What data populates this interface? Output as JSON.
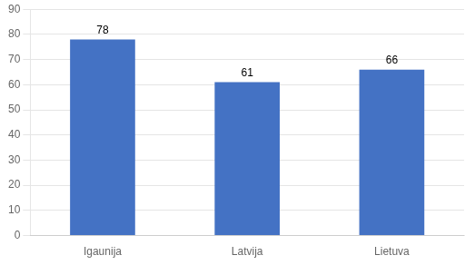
{
  "chart_data": {
    "type": "bar",
    "categories": [
      "Igaunija",
      "Latvija",
      "Lietuva"
    ],
    "values": [
      78,
      61,
      66
    ],
    "color": "#4472C4",
    "ylim": [
      0,
      90
    ],
    "yticks": [
      0,
      10,
      20,
      30,
      40,
      50,
      60,
      70,
      80,
      90
    ],
    "grid": true,
    "data_labels": true
  }
}
